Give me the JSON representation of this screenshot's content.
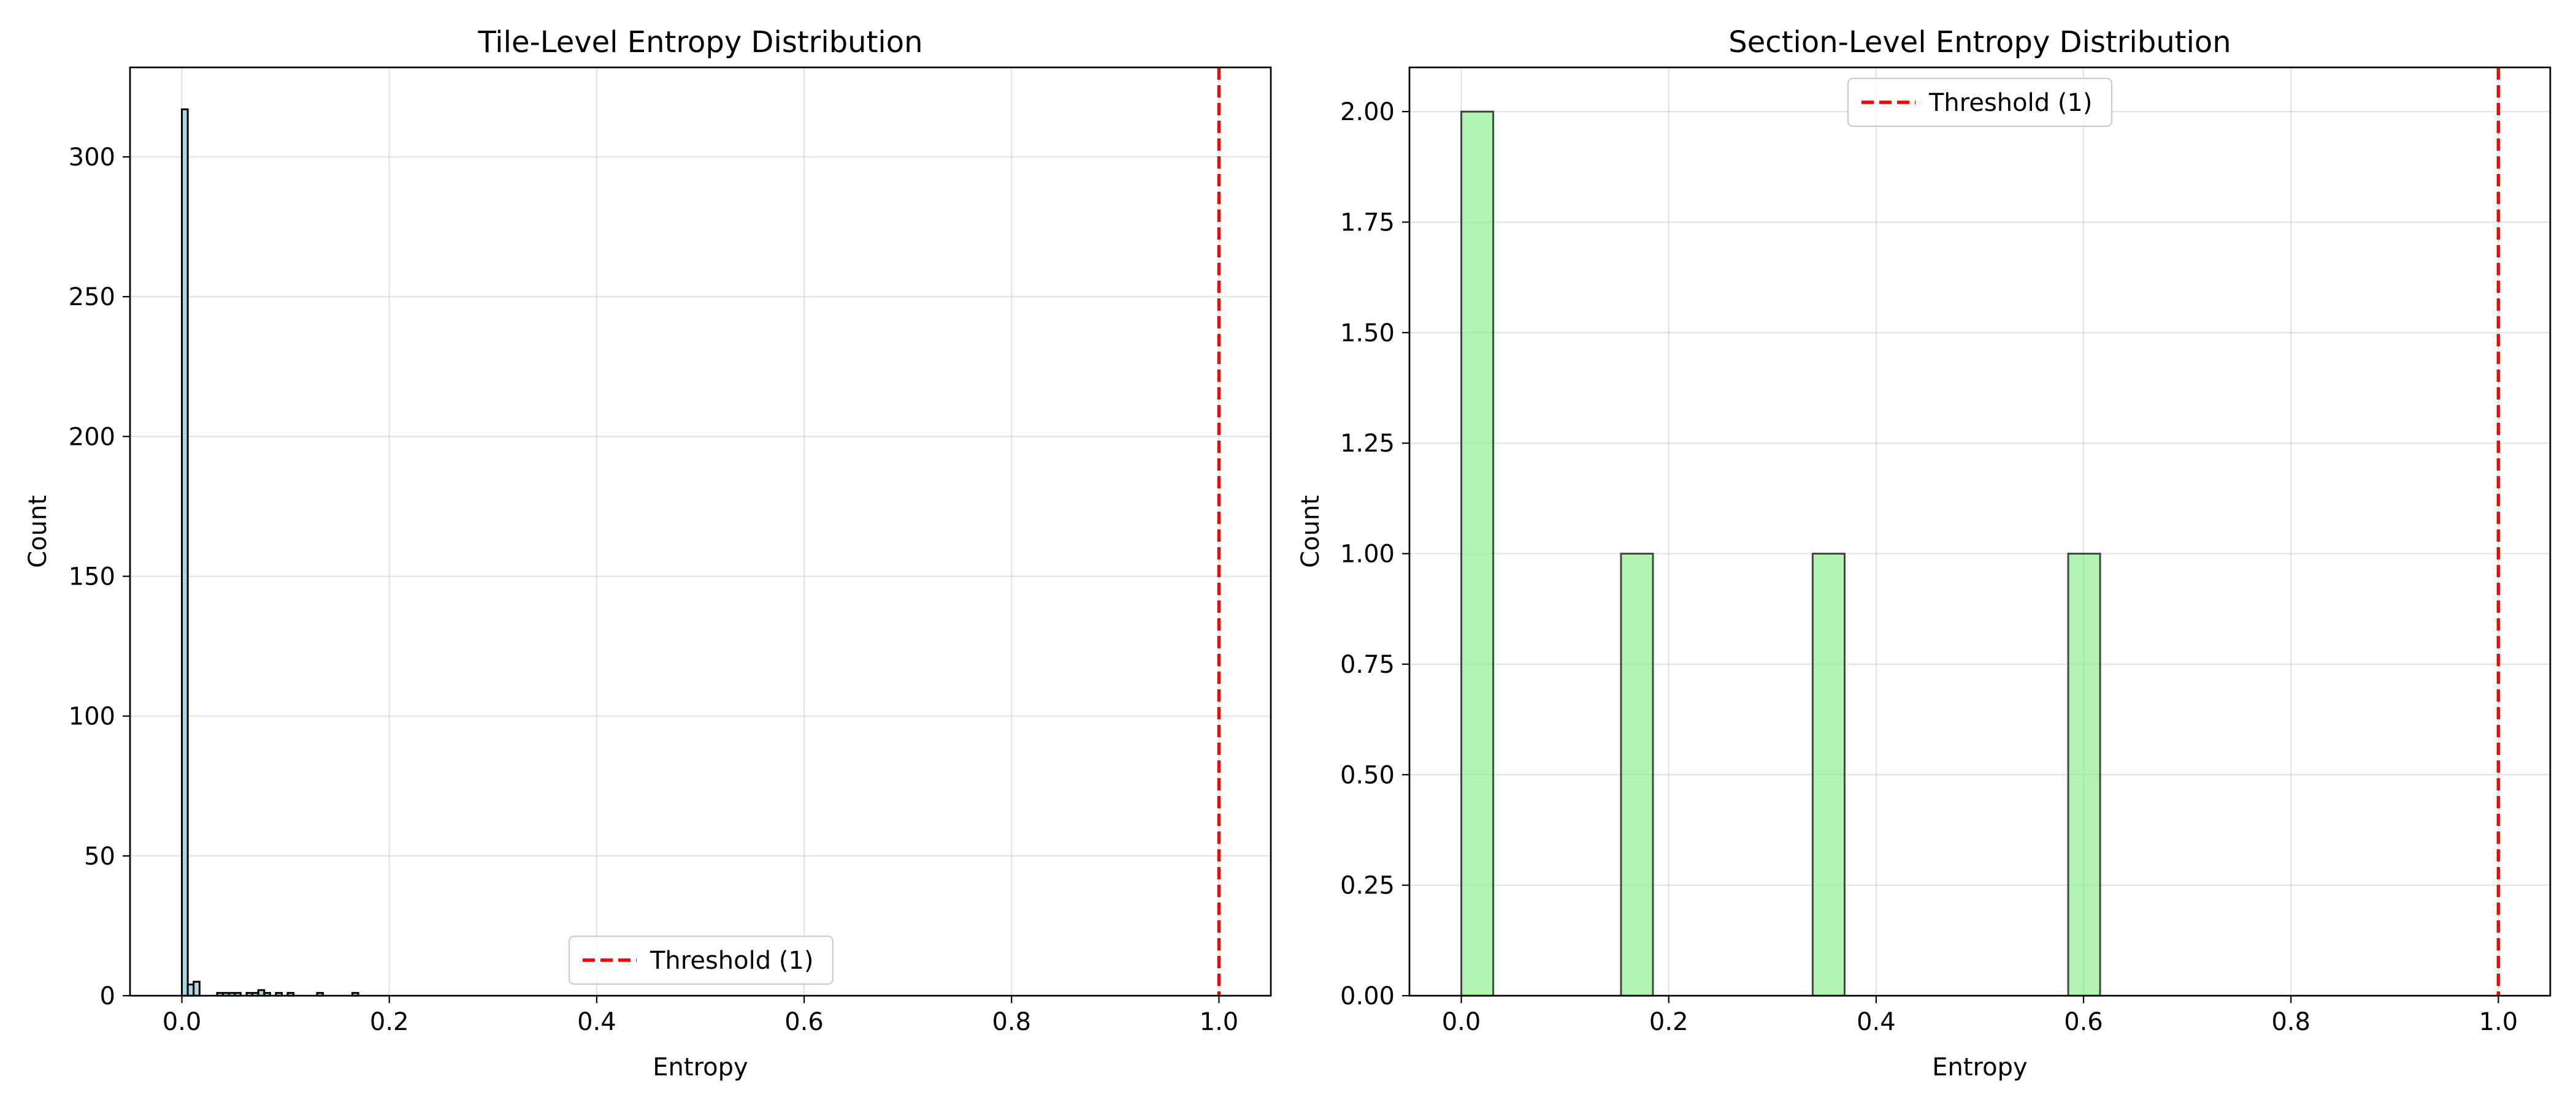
{
  "colors": {
    "tile_bar_fill": "#add8e6",
    "section_bar_fill": "#90ee90",
    "bar_edge": "#000000",
    "threshold": "#ff0000",
    "grid": "#b0b0b0",
    "background": "#ffffff"
  },
  "chart_data": [
    {
      "type": "bar",
      "title": "Tile-Level Entropy Distribution",
      "xlabel": "Entropy",
      "ylabel": "Count",
      "xlim": [
        -0.05,
        1.05
      ],
      "ylim": [
        0,
        332
      ],
      "xticks": [
        0.0,
        0.2,
        0.4,
        0.6,
        0.8,
        1.0
      ],
      "xtick_labels": [
        "0.0",
        "0.2",
        "0.4",
        "0.6",
        "0.8",
        "1.0"
      ],
      "yticks": [
        0,
        50,
        100,
        150,
        200,
        250,
        300
      ],
      "ytick_labels": [
        "0",
        "50",
        "100",
        "150",
        "200",
        "250",
        "300"
      ],
      "grid": true,
      "legend_position": "lower-center",
      "bin_width": 0.00567,
      "bins": [
        {
          "x": 0.0,
          "count": 317
        },
        {
          "x": 0.00567,
          "count": 4
        },
        {
          "x": 0.01134,
          "count": 5
        },
        {
          "x": 0.034,
          "count": 1
        },
        {
          "x": 0.0397,
          "count": 1
        },
        {
          "x": 0.0454,
          "count": 1
        },
        {
          "x": 0.051,
          "count": 1
        },
        {
          "x": 0.0624,
          "count": 1
        },
        {
          "x": 0.068,
          "count": 1
        },
        {
          "x": 0.0737,
          "count": 2
        },
        {
          "x": 0.0794,
          "count": 1
        },
        {
          "x": 0.0907,
          "count": 1
        },
        {
          "x": 0.102,
          "count": 1
        },
        {
          "x": 0.1304,
          "count": 1
        },
        {
          "x": 0.1644,
          "count": 1
        }
      ],
      "threshold": {
        "value": 1.0,
        "label": "Threshold (1)"
      }
    },
    {
      "type": "bar",
      "title": "Section-Level Entropy Distribution",
      "xlabel": "Entropy",
      "ylabel": "Count",
      "xlim": [
        -0.05,
        1.05
      ],
      "ylim": [
        0,
        2.1
      ],
      "xticks": [
        0.0,
        0.2,
        0.4,
        0.6,
        0.8,
        1.0
      ],
      "xtick_labels": [
        "0.0",
        "0.2",
        "0.4",
        "0.6",
        "0.8",
        "1.0"
      ],
      "yticks": [
        0,
        0.25,
        0.5,
        0.75,
        1.0,
        1.25,
        1.5,
        1.75,
        2.0
      ],
      "ytick_labels": [
        "0.00",
        "0.25",
        "0.50",
        "0.75",
        "1.00",
        "1.25",
        "1.50",
        "1.75",
        "2.00"
      ],
      "grid": true,
      "legend_position": "upper-center",
      "bin_width": 0.0308,
      "bins": [
        {
          "x": 0.0,
          "count": 2
        },
        {
          "x": 0.0308,
          "count": 0
        },
        {
          "x": 0.0616,
          "count": 0
        },
        {
          "x": 0.0924,
          "count": 0
        },
        {
          "x": 0.1232,
          "count": 0
        },
        {
          "x": 0.154,
          "count": 1
        },
        {
          "x": 0.1848,
          "count": 0
        },
        {
          "x": 0.2156,
          "count": 0
        },
        {
          "x": 0.2464,
          "count": 0
        },
        {
          "x": 0.2772,
          "count": 0
        },
        {
          "x": 0.308,
          "count": 0
        },
        {
          "x": 0.3388,
          "count": 1
        },
        {
          "x": 0.3696,
          "count": 0
        },
        {
          "x": 0.4004,
          "count": 0
        },
        {
          "x": 0.4312,
          "count": 0
        },
        {
          "x": 0.462,
          "count": 0
        },
        {
          "x": 0.4928,
          "count": 0
        },
        {
          "x": 0.5236,
          "count": 0
        },
        {
          "x": 0.5544,
          "count": 0
        },
        {
          "x": 0.5852,
          "count": 1
        }
      ],
      "threshold": {
        "value": 1.0,
        "label": "Threshold (1)"
      }
    }
  ]
}
